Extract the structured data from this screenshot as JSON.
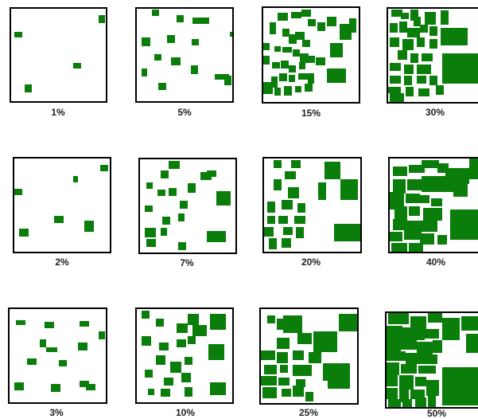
{
  "figure": {
    "fill_color": "#0a7d0a",
    "border_color": "#000000",
    "panels": [
      {
        "id": "p1",
        "caption": "1%"
      },
      {
        "id": "p5",
        "caption": "5%"
      },
      {
        "id": "p15",
        "caption": "15%"
      },
      {
        "id": "p30",
        "caption": "30%"
      },
      {
        "id": "p2",
        "caption": "2%"
      },
      {
        "id": "p7",
        "caption": "7%"
      },
      {
        "id": "p20",
        "caption": "20%"
      },
      {
        "id": "p40",
        "caption": "40%"
      },
      {
        "id": "p3",
        "caption": "3%"
      },
      {
        "id": "p10",
        "caption": "10%"
      },
      {
        "id": "p25",
        "caption": "25%"
      },
      {
        "id": "p50",
        "caption": "50%"
      }
    ]
  }
}
